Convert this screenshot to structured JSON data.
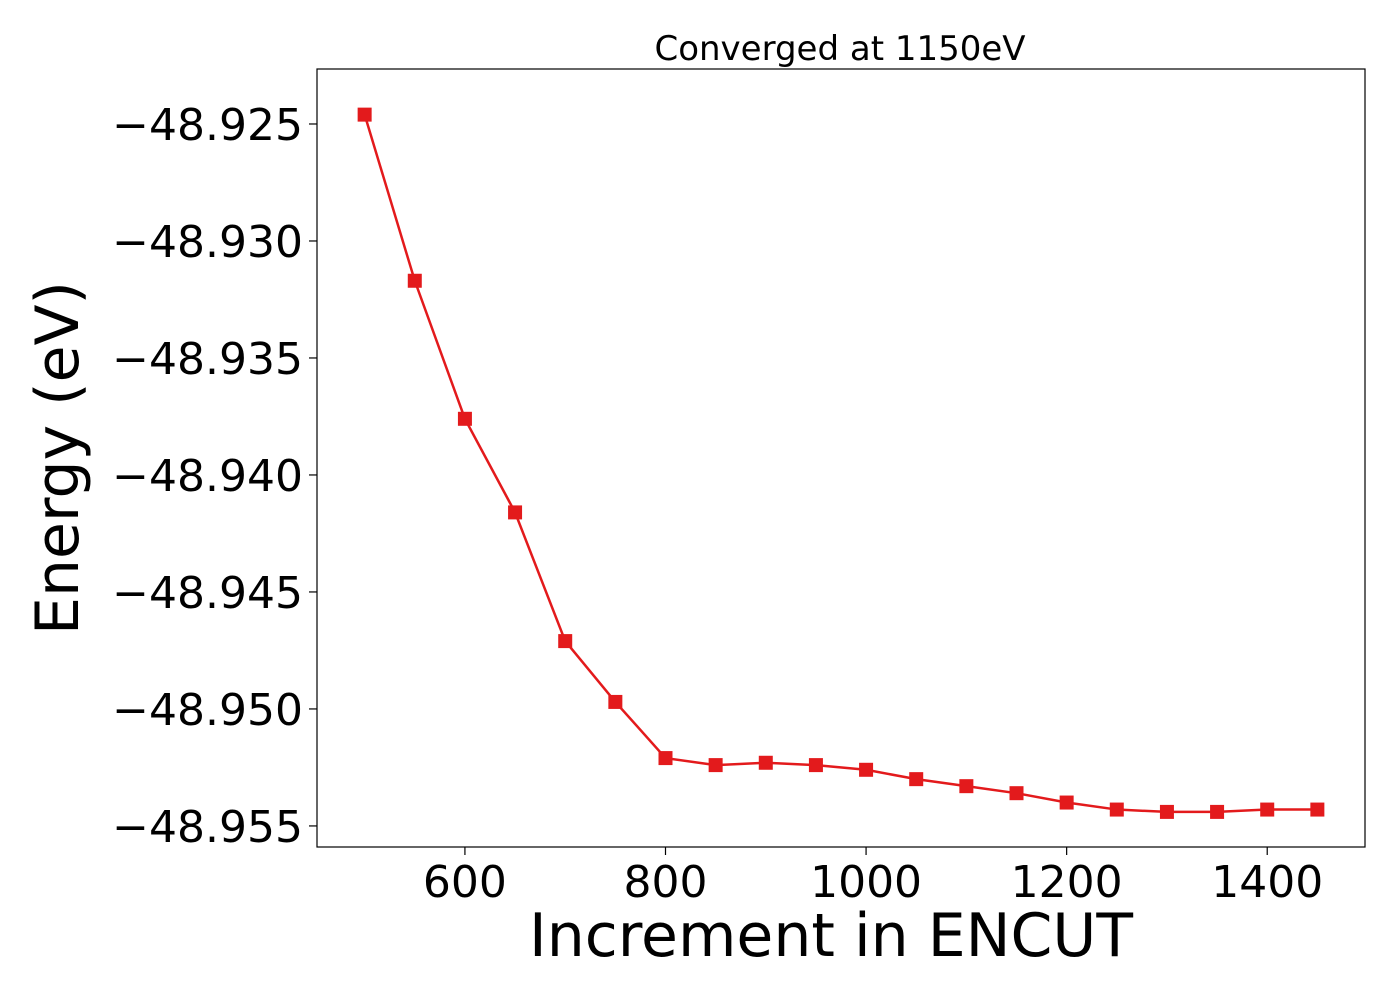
{
  "chart_data": {
    "type": "line",
    "title": "Converged at 1150eV",
    "xlabel": "Increment in ENCUT",
    "ylabel": "Energy (eV)",
    "xlim": [
      452.5,
      1497.5
    ],
    "ylim": [
      -48.9559,
      -48.92265
    ],
    "x_ticks": [
      600,
      800,
      1000,
      1200,
      1400
    ],
    "y_ticks": [
      -48.925,
      -48.93,
      -48.935,
      -48.94,
      -48.945,
      -48.95,
      -48.955
    ],
    "x_tick_labels": [
      "600",
      "800",
      "1000",
      "1200",
      "1400"
    ],
    "y_tick_labels": [
      "−48.925",
      "−48.930",
      "−48.935",
      "−48.940",
      "−48.945",
      "−48.950",
      "−48.955"
    ],
    "grid": false,
    "marker": "square",
    "color": "#e31a1c",
    "series": [
      {
        "x": [
          500,
          550,
          600,
          650,
          700,
          750,
          800,
          850,
          900,
          950,
          1000,
          1050,
          1100,
          1150,
          1200,
          1250,
          1300,
          1350,
          1400,
          1450
        ],
        "values": [
          -48.9246,
          -48.9317,
          -48.9376,
          -48.9416,
          -48.9471,
          -48.9497,
          -48.9521,
          -48.9524,
          -48.9523,
          -48.9524,
          -48.9526,
          -48.953,
          -48.9533,
          -48.9536,
          -48.954,
          -48.9543,
          -48.9544,
          -48.9544,
          -48.9543,
          -48.9543
        ]
      }
    ]
  }
}
